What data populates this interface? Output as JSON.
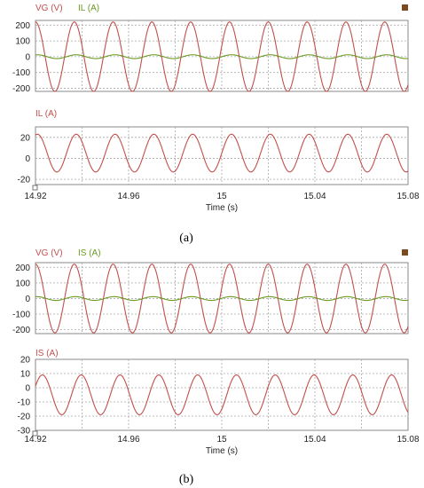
{
  "colors": {
    "red": "#c0504d",
    "green": "#6a9a22",
    "marker": "#7a4a20",
    "grid": "#a8a8a8",
    "frame": "#888888"
  },
  "figures": [
    {
      "caption": "(a)",
      "xlabel": "Time (s)"
    },
    {
      "caption": "(b)",
      "xlabel": "Time (s)"
    }
  ],
  "chart_data": [
    {
      "type": "line",
      "figure": "(a)",
      "panel": "top",
      "legend": [
        "VG (V)",
        "IL (A)"
      ],
      "xlim": [
        14.92,
        15.08
      ],
      "x_ticks": [
        "14.92",
        "14.96",
        "15",
        "15.04",
        "15.08"
      ],
      "ylim": [
        -220,
        230
      ],
      "y_ticks": [
        "200",
        "100",
        "0",
        "-100",
        "-200"
      ],
      "series": [
        {
          "name": "VG (V)",
          "color": "red",
          "amplitude": 220,
          "offset": 0,
          "frequency_hz": 60,
          "phase_rad": 1.57
        },
        {
          "name": "IL (A)",
          "color": "green",
          "amplitude": 12,
          "offset": 0,
          "frequency_hz": 60,
          "phase_rad": 1.25
        }
      ],
      "grid": true
    },
    {
      "type": "line",
      "figure": "(a)",
      "panel": "bottom",
      "legend": [
        "IL (A)"
      ],
      "xlim": [
        14.92,
        15.08
      ],
      "x_ticks": [
        "14.92",
        "14.96",
        "15",
        "15.04",
        "15.08"
      ],
      "xlabel": "Time (s)",
      "ylim": [
        -25,
        30
      ],
      "y_ticks": [
        "20",
        "0",
        "-20"
      ],
      "series": [
        {
          "name": "IL (A)",
          "color": "red",
          "amplitude": 18,
          "offset": 5,
          "frequency_hz": 60,
          "phase_rad": 1.25
        }
      ],
      "grid": true
    },
    {
      "type": "line",
      "figure": "(b)",
      "panel": "top",
      "legend": [
        "VG (V)",
        "IS (A)"
      ],
      "xlim": [
        14.92,
        15.08
      ],
      "x_ticks": [
        "14.92",
        "14.96",
        "15",
        "15.04",
        "15.08"
      ],
      "ylim": [
        -225,
        230
      ],
      "y_ticks": [
        "200",
        "100",
        "0",
        "-100",
        "-200"
      ],
      "series": [
        {
          "name": "VG (V)",
          "color": "red",
          "amplitude": 220,
          "offset": 0,
          "frequency_hz": 60,
          "phase_rad": 1.57
        },
        {
          "name": "IS (A)",
          "color": "green",
          "amplitude": 12,
          "offset": 0,
          "frequency_hz": 60,
          "phase_rad": 1.4
        }
      ],
      "grid": true
    },
    {
      "type": "line",
      "figure": "(b)",
      "panel": "bottom",
      "legend": [
        "IS (A)"
      ],
      "xlim": [
        14.92,
        15.08
      ],
      "x_ticks": [
        "14.92",
        "14.96",
        "15",
        "15.04",
        "15.08"
      ],
      "xlabel": "Time (s)",
      "ylim": [
        -30,
        20
      ],
      "y_ticks": [
        "20",
        "10",
        "0",
        "-10",
        "-20",
        "-30"
      ],
      "series": [
        {
          "name": "IS (A)",
          "color": "red",
          "amplitude": 14,
          "offset": -5,
          "frequency_hz": 60,
          "phase_rad": 0.45
        }
      ],
      "grid": true
    }
  ]
}
